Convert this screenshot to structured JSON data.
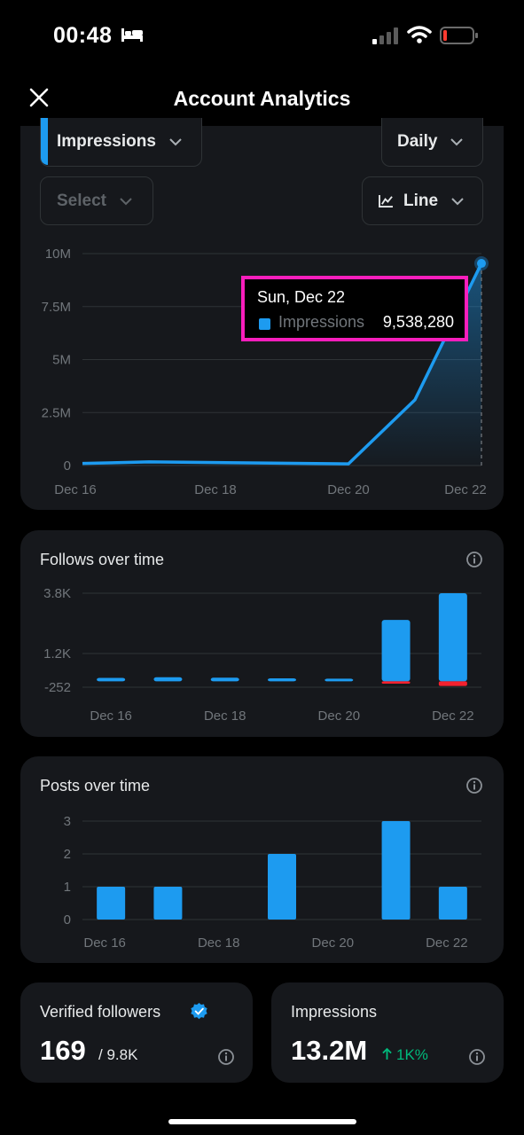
{
  "status_bar": {
    "time": "00:48"
  },
  "header": {
    "title": "Account Analytics"
  },
  "controls": {
    "metric": "Impressions",
    "period": "Daily",
    "compare_placeholder": "Select",
    "chart_type": "Line"
  },
  "impressions_chart": {
    "y_ticks": [
      "10M",
      "7.5M",
      "5M",
      "2.5M",
      "0"
    ],
    "x_ticks": [
      "Dec 16",
      "Dec 18",
      "Dec 20",
      "Dec 22"
    ],
    "tooltip": {
      "date": "Sun, Dec 22",
      "series": "Impressions",
      "value": "9,538,280"
    }
  },
  "follows_card": {
    "title": "Follows over time",
    "y_ticks": [
      "3.8K",
      "1.2K",
      "-252"
    ],
    "x_ticks": [
      "Dec 16",
      "Dec 18",
      "Dec 20",
      "Dec 22"
    ]
  },
  "posts_card": {
    "title": "Posts over time",
    "y_ticks": [
      "3",
      "2",
      "1",
      "0"
    ],
    "x_ticks": [
      "Dec 16",
      "Dec 18",
      "Dec 20",
      "Dec 22"
    ]
  },
  "verified_card": {
    "label": "Verified followers",
    "value": "169",
    "sub": "/ 9.8K"
  },
  "impressions_card": {
    "label": "Impressions",
    "value": "13.2M",
    "change": "1K%"
  },
  "colors": {
    "accent": "#1d9bf0",
    "negative": "#f4212e",
    "positive": "#00ba7c",
    "highlight": "#f91ebc"
  },
  "chart_data": [
    {
      "type": "area",
      "x": [
        "Dec 16",
        "Dec 17",
        "Dec 18",
        "Dec 19",
        "Dec 20",
        "Dec 21",
        "Dec 22"
      ],
      "series": [
        {
          "name": "Impressions",
          "values": [
            100000,
            170000,
            140000,
            110000,
            80000,
            3100000,
            9538280
          ]
        }
      ],
      "ylim": [
        0,
        10000000
      ],
      "grid": true
    },
    {
      "type": "bar",
      "title": "Follows over time",
      "categories": [
        "Dec 16",
        "Dec 17",
        "Dec 18",
        "Dec 19",
        "Dec 20",
        "Dec 21",
        "Dec 22"
      ],
      "series": [
        {
          "values": [
            150,
            180,
            160,
            130,
            60,
            2650,
            3800
          ]
        },
        {
          "values": [
            0,
            0,
            0,
            0,
            0,
            -100,
            -200
          ]
        }
      ],
      "ylim": [
        -252,
        3800
      ],
      "grid": true
    },
    {
      "type": "bar",
      "title": "Posts over time",
      "categories": [
        "Dec 16",
        "Dec 17",
        "Dec 18",
        "Dec 19",
        "Dec 20",
        "Dec 21",
        "Dec 22"
      ],
      "values": [
        1,
        1,
        0,
        2,
        0,
        3,
        1
      ],
      "ylim": [
        0,
        3
      ],
      "grid": true
    }
  ]
}
